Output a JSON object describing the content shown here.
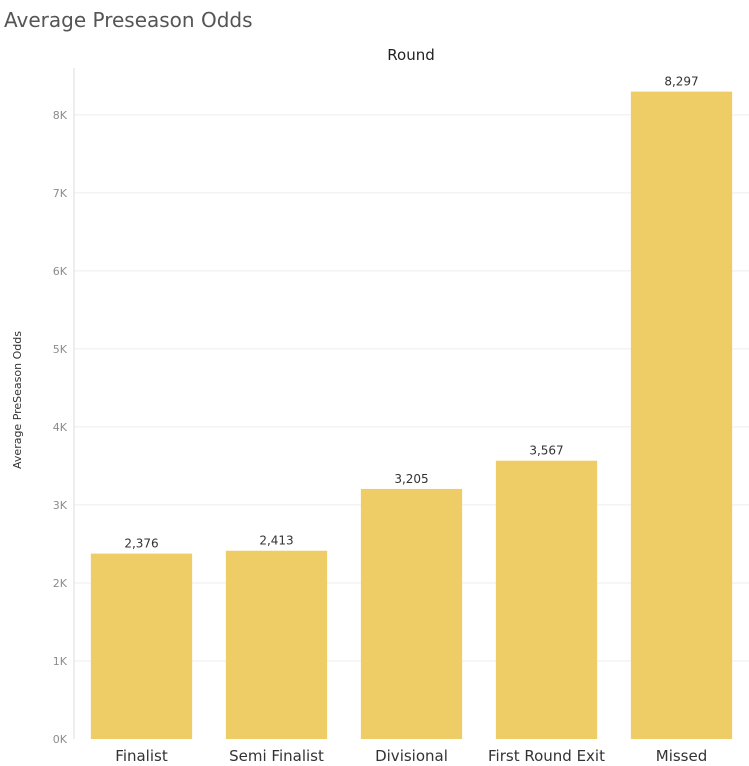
{
  "chart_data": {
    "type": "bar",
    "title": "Average Preseason Odds",
    "column_header": "Round",
    "ylabel": "Average PreSeason Odds",
    "xlabel": "",
    "categories": [
      "Finalist",
      "Semi Finalist",
      "Divisional",
      "First Round Exit",
      "Missed"
    ],
    "values": [
      2376,
      2413,
      3205,
      3567,
      8297
    ],
    "value_labels": [
      "2,376",
      "2,413",
      "3,205",
      "3,567",
      "8,297"
    ],
    "ylim": [
      0,
      8600
    ],
    "yticks": [
      0,
      1000,
      2000,
      3000,
      4000,
      5000,
      6000,
      7000,
      8000
    ],
    "ytick_labels": [
      "0K",
      "1K",
      "2K",
      "3K",
      "4K",
      "5K",
      "6K",
      "7K",
      "8K"
    ],
    "grid": true,
    "legend": "none",
    "bar_color": "#EECC66"
  }
}
